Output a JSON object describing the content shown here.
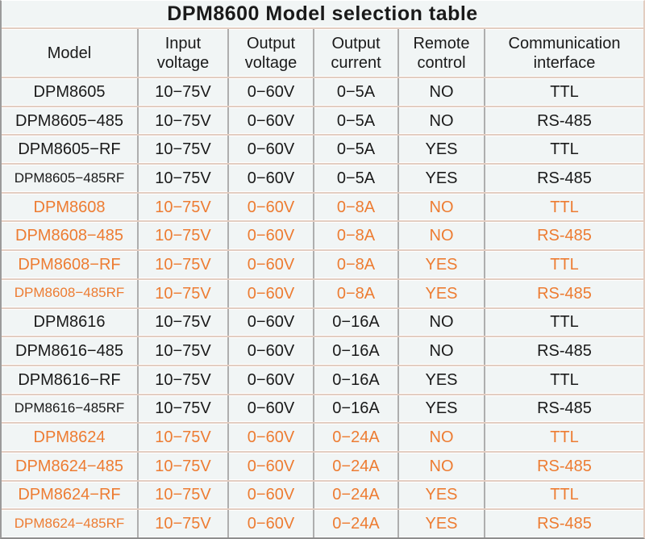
{
  "title": "DPM8600 Model selection table",
  "columns": [
    "Model",
    "Input voltage",
    "Output voltage",
    "Output current",
    "Remote control",
    "Communication interface"
  ],
  "colors": {
    "base_text": "#1A1A1A",
    "accent_text": "#ED7C32",
    "background": "#F1F5F5",
    "row_divider": "#E3CDC1",
    "column_divider": "#AEAEAE"
  },
  "rows": [
    {
      "model": "DPM8605",
      "input_voltage": "10−75V",
      "output_voltage": "0−60V",
      "output_current": "0−5A",
      "remote_control": "NO",
      "communication_interface": "TTL",
      "accent": false
    },
    {
      "model": "DPM8605−485",
      "input_voltage": "10−75V",
      "output_voltage": "0−60V",
      "output_current": "0−5A",
      "remote_control": "NO",
      "communication_interface": "RS-485",
      "accent": false
    },
    {
      "model": "DPM8605−RF",
      "input_voltage": "10−75V",
      "output_voltage": "0−60V",
      "output_current": "0−5A",
      "remote_control": "YES",
      "communication_interface": "TTL",
      "accent": false
    },
    {
      "model": "DPM8605−485RF",
      "input_voltage": "10−75V",
      "output_voltage": "0−60V",
      "output_current": "0−5A",
      "remote_control": "YES",
      "communication_interface": "RS-485",
      "accent": false
    },
    {
      "model": "DPM8608",
      "input_voltage": "10−75V",
      "output_voltage": "0−60V",
      "output_current": "0−8A",
      "remote_control": "NO",
      "communication_interface": "TTL",
      "accent": true
    },
    {
      "model": "DPM8608−485",
      "input_voltage": "10−75V",
      "output_voltage": "0−60V",
      "output_current": "0−8A",
      "remote_control": "NO",
      "communication_interface": "RS-485",
      "accent": true
    },
    {
      "model": "DPM8608−RF",
      "input_voltage": "10−75V",
      "output_voltage": "0−60V",
      "output_current": "0−8A",
      "remote_control": "YES",
      "communication_interface": "TTL",
      "accent": true
    },
    {
      "model": "DPM8608−485RF",
      "input_voltage": "10−75V",
      "output_voltage": "0−60V",
      "output_current": "0−8A",
      "remote_control": "YES",
      "communication_interface": "RS-485",
      "accent": true
    },
    {
      "model": "DPM8616",
      "input_voltage": "10−75V",
      "output_voltage": "0−60V",
      "output_current": "0−16A",
      "remote_control": "NO",
      "communication_interface": "TTL",
      "accent": false
    },
    {
      "model": "DPM8616−485",
      "input_voltage": "10−75V",
      "output_voltage": "0−60V",
      "output_current": "0−16A",
      "remote_control": "NO",
      "communication_interface": "RS-485",
      "accent": false
    },
    {
      "model": "DPM8616−RF",
      "input_voltage": "10−75V",
      "output_voltage": "0−60V",
      "output_current": "0−16A",
      "remote_control": "YES",
      "communication_interface": "TTL",
      "accent": false
    },
    {
      "model": "DPM8616−485RF",
      "input_voltage": "10−75V",
      "output_voltage": "0−60V",
      "output_current": "0−16A",
      "remote_control": "YES",
      "communication_interface": "RS-485",
      "accent": false
    },
    {
      "model": "DPM8624",
      "input_voltage": "10−75V",
      "output_voltage": "0−60V",
      "output_current": "0−24A",
      "remote_control": "NO",
      "communication_interface": "TTL",
      "accent": true
    },
    {
      "model": "DPM8624−485",
      "input_voltage": "10−75V",
      "output_voltage": "0−60V",
      "output_current": "0−24A",
      "remote_control": "NO",
      "communication_interface": "RS-485",
      "accent": true
    },
    {
      "model": "DPM8624−RF",
      "input_voltage": "10−75V",
      "output_voltage": "0−60V",
      "output_current": "0−24A",
      "remote_control": "YES",
      "communication_interface": "TTL",
      "accent": true
    },
    {
      "model": "DPM8624−485RF",
      "input_voltage": "10−75V",
      "output_voltage": "0−60V",
      "output_current": "0−24A",
      "remote_control": "YES",
      "communication_interface": "RS-485",
      "accent": true
    }
  ]
}
